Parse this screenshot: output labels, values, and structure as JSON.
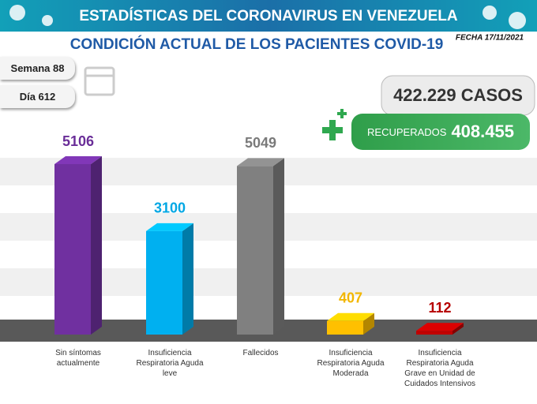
{
  "header": {
    "title": "ESTADÍSTICAS DEL CORONAVIRUS EN VENEZUELA",
    "date": "FECHA 17/11/2021",
    "week": "Semana 88",
    "day": "Día 612",
    "cases": "422.229 CASOS",
    "recovered_label": "RECUPERADOS",
    "recovered_value": "408.455"
  },
  "chart_data": {
    "type": "bar",
    "title": "CONDICIÓN ACTUAL DE LOS PACIENTES COVID-19",
    "categories": [
      "Sin síntomas actualmente",
      "Insuficiencia Respiratoria Aguda leve",
      "Fallecidos",
      "Insuficiencia Respiratoria Aguda Moderada",
      "Insuficiencia Respiratoria Aguda Grave en Unidad de Cuidados Intensivos"
    ],
    "values": [
      5106,
      3100,
      5049,
      407,
      112
    ],
    "colors": [
      "#7030a0",
      "#00b0f0",
      "#808080",
      "#ffc000",
      "#c00000"
    ]
  }
}
